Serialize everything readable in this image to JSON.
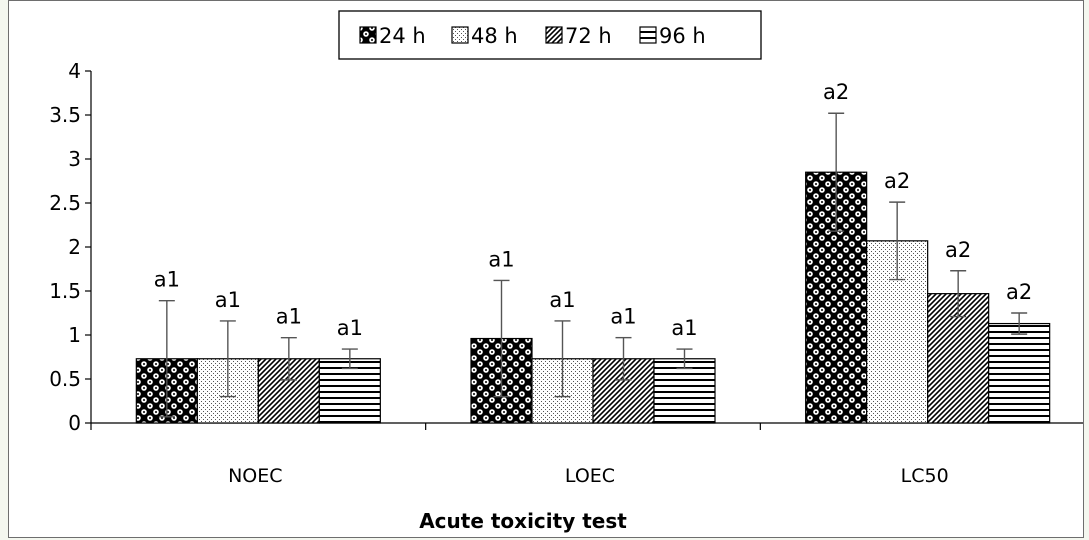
{
  "chart_data": {
    "type": "bar",
    "title": "",
    "xlabel": "Acute toxicity test",
    "ylabel": "",
    "ylim": [
      0,
      4
    ],
    "yticks": [
      "0",
      "0.5",
      "1",
      "1.5",
      "2",
      "2.5",
      "3",
      "3.5",
      "4"
    ],
    "categories": [
      "NOEC",
      "LOEC",
      "LC50"
    ],
    "legend_position": "top-center",
    "grid": false,
    "series": [
      {
        "name": "24 h",
        "pattern": "dots-dense",
        "values": [
          0.73,
          0.96,
          2.85
        ],
        "errors": [
          0.66,
          0.66,
          0.67
        ],
        "labels": [
          "a1",
          "a1",
          "a2"
        ]
      },
      {
        "name": "48 h",
        "pattern": "dots-light",
        "values": [
          0.73,
          0.73,
          2.07
        ],
        "errors": [
          0.43,
          0.43,
          0.44
        ],
        "labels": [
          "a1",
          "a1",
          "a2"
        ]
      },
      {
        "name": "72 h",
        "pattern": "diagonal-hatch",
        "values": [
          0.73,
          0.73,
          1.47
        ],
        "errors": [
          0.24,
          0.24,
          0.26
        ],
        "labels": [
          "a1",
          "a1",
          "a2"
        ]
      },
      {
        "name": "96 h",
        "pattern": "horizontal-lines",
        "values": [
          0.73,
          0.73,
          1.13
        ],
        "errors": [
          0.11,
          0.11,
          0.12
        ],
        "labels": [
          "a1",
          "a1",
          "a2"
        ]
      }
    ]
  }
}
